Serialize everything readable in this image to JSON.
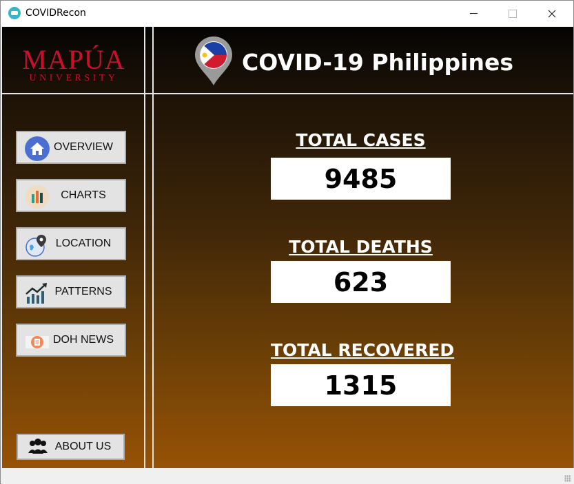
{
  "window": {
    "title": "COVIDRecon"
  },
  "logo": {
    "main": "MAPÚA",
    "sub": "UNIVERSITY",
    "color": "#c8102e"
  },
  "header": {
    "title": "COVID-19 Philippines"
  },
  "nav": {
    "overview": "OVERVIEW",
    "charts": "CHARTS",
    "location": "LOCATION",
    "patterns": "PATTERNS",
    "doh_news": "DOH NEWS",
    "about_us": "ABOUT US"
  },
  "stats": {
    "cases_label": "TOTAL CASES",
    "cases_value": "9485",
    "deaths_label": "TOTAL DEATHS",
    "deaths_value": "623",
    "recovered_label": "TOTAL RECOVERED",
    "recovered_value": "1315"
  },
  "icons": {
    "app": "mask-icon",
    "overview": "home-icon",
    "charts": "bar-chart-icon",
    "location": "globe-pin-icon",
    "patterns": "trend-up-icon",
    "doh_news": "news-icon",
    "about_us": "users-icon",
    "header": "philippines-flag-pin-icon"
  }
}
